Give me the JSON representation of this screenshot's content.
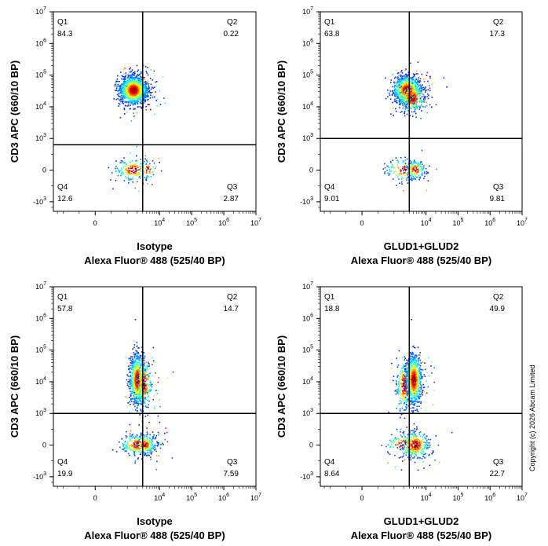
{
  "copyright": "Copyright (c) 2026 Abcam Limited",
  "tick_labels": {
    "y": [
      {
        "base": "10",
        "exp": "7",
        "v": 10000000.0
      },
      {
        "base": "10",
        "exp": "6",
        "v": 1000000.0
      },
      {
        "base": "10",
        "exp": "5",
        "v": 100000.0
      },
      {
        "base": "10",
        "exp": "4",
        "v": 10000.0
      },
      {
        "base": "10",
        "exp": "3",
        "v": 1000.0
      },
      {
        "base": "0",
        "exp": "",
        "v": 0
      },
      {
        "base": "-10",
        "exp": "3",
        "v": -1000.0
      }
    ],
    "x": [
      {
        "base": "0",
        "exp": "",
        "v": 0
      },
      {
        "base": "10",
        "exp": "4",
        "v": 10000.0
      },
      {
        "base": "10",
        "exp": "5",
        "v": 100000.0
      },
      {
        "base": "10",
        "exp": "6",
        "v": 1000000.0
      },
      {
        "base": "10",
        "exp": "7",
        "v": 10000000.0
      }
    ]
  },
  "chart_data": [
    {
      "type": "scatter",
      "title": "",
      "ylabel": "CD3 APC (660/10 BP)",
      "xlabel_line1": "Isotype",
      "xlabel_line2": "Alexa Fluor® 488  (525/40 BP)",
      "scale": "biexponential",
      "xlim": [
        -2000,
        10000000
      ],
      "ylim": [
        -2000,
        10000000
      ],
      "gate": {
        "x": 3000,
        "y": 800
      },
      "quadrants": [
        {
          "name": "Q1",
          "value": "84.3"
        },
        {
          "name": "Q2",
          "value": "0.22"
        },
        {
          "name": "Q3",
          "value": "2.87"
        },
        {
          "name": "Q4",
          "value": "12.6"
        }
      ],
      "populations": [
        {
          "cx": 1500,
          "cy": 35000,
          "share": 0.843,
          "shape": "round"
        },
        {
          "cx": 1500,
          "cy": 30,
          "share": 0.126,
          "shape": "wide"
        },
        {
          "cx": 4000,
          "cy": 30,
          "share": 0.029,
          "shape": "small"
        }
      ]
    },
    {
      "type": "scatter",
      "title": "",
      "ylabel": "CD3 APC (660/10 BP)",
      "xlabel_line1": "GLUD1+GLUD2",
      "xlabel_line2": "Alexa Fluor® 488  (525/40 BP)",
      "scale": "biexponential",
      "xlim": [
        -2000,
        10000000
      ],
      "ylim": [
        -2000,
        10000000
      ],
      "gate": {
        "x": 3000,
        "y": 1000
      },
      "quadrants": [
        {
          "name": "Q1",
          "value": "63.8"
        },
        {
          "name": "Q2",
          "value": "17.3"
        },
        {
          "name": "Q3",
          "value": "9.81"
        },
        {
          "name": "Q4",
          "value": "9.01"
        }
      ],
      "populations": [
        {
          "cx": 2500,
          "cy": 35000,
          "share": 0.638,
          "shape": "round"
        },
        {
          "cx": 3500,
          "cy": 20000,
          "share": 0.173,
          "shape": "round"
        },
        {
          "cx": 2000,
          "cy": 30,
          "share": 0.09,
          "shape": "wide"
        },
        {
          "cx": 4500,
          "cy": 30,
          "share": 0.098,
          "shape": "small"
        }
      ]
    },
    {
      "type": "scatter",
      "title": "",
      "ylabel": "CD3 APC (660/10 BP)",
      "xlabel_line1": "Isotype",
      "xlabel_line2": "Alexa Fluor® 488  (525/40 BP)",
      "scale": "biexponential",
      "xlim": [
        -2000,
        10000000
      ],
      "ylim": [
        -2000,
        10000000
      ],
      "gate": {
        "x": 3000,
        "y": 1000
      },
      "quadrants": [
        {
          "name": "Q1",
          "value": "57.8"
        },
        {
          "name": "Q2",
          "value": "14.7"
        },
        {
          "name": "Q3",
          "value": "7.59"
        },
        {
          "name": "Q4",
          "value": "19.9"
        }
      ],
      "populations": [
        {
          "cx": 2000,
          "cy": 12000,
          "share": 0.578,
          "shape": "tall"
        },
        {
          "cx": 3200,
          "cy": 9000,
          "share": 0.147,
          "shape": "tall"
        },
        {
          "cx": 2200,
          "cy": 30,
          "share": 0.199,
          "shape": "wide"
        },
        {
          "cx": 3500,
          "cy": 30,
          "share": 0.076,
          "shape": "small"
        }
      ]
    },
    {
      "type": "scatter",
      "title": "",
      "ylabel": "CD3 APC (660/10 BP)",
      "xlabel_line1": "GLUD1+GLUD2",
      "xlabel_line2": "Alexa Fluor® 488  (525/40 BP)",
      "scale": "biexponential",
      "xlim": [
        -2000,
        10000000
      ],
      "ylim": [
        -2000,
        10000000
      ],
      "gate": {
        "x": 3000,
        "y": 1000
      },
      "quadrants": [
        {
          "name": "Q1",
          "value": "18.8"
        },
        {
          "name": "Q2",
          "value": "49.9"
        },
        {
          "name": "Q3",
          "value": "22.7"
        },
        {
          "name": "Q4",
          "value": "8.64"
        }
      ],
      "populations": [
        {
          "cx": 2000,
          "cy": 8000,
          "share": 0.188,
          "shape": "tall"
        },
        {
          "cx": 4000,
          "cy": 12000,
          "share": 0.499,
          "shape": "tall"
        },
        {
          "cx": 2000,
          "cy": 30,
          "share": 0.086,
          "shape": "wide"
        },
        {
          "cx": 4500,
          "cy": 30,
          "share": 0.227,
          "shape": "round"
        }
      ]
    }
  ]
}
